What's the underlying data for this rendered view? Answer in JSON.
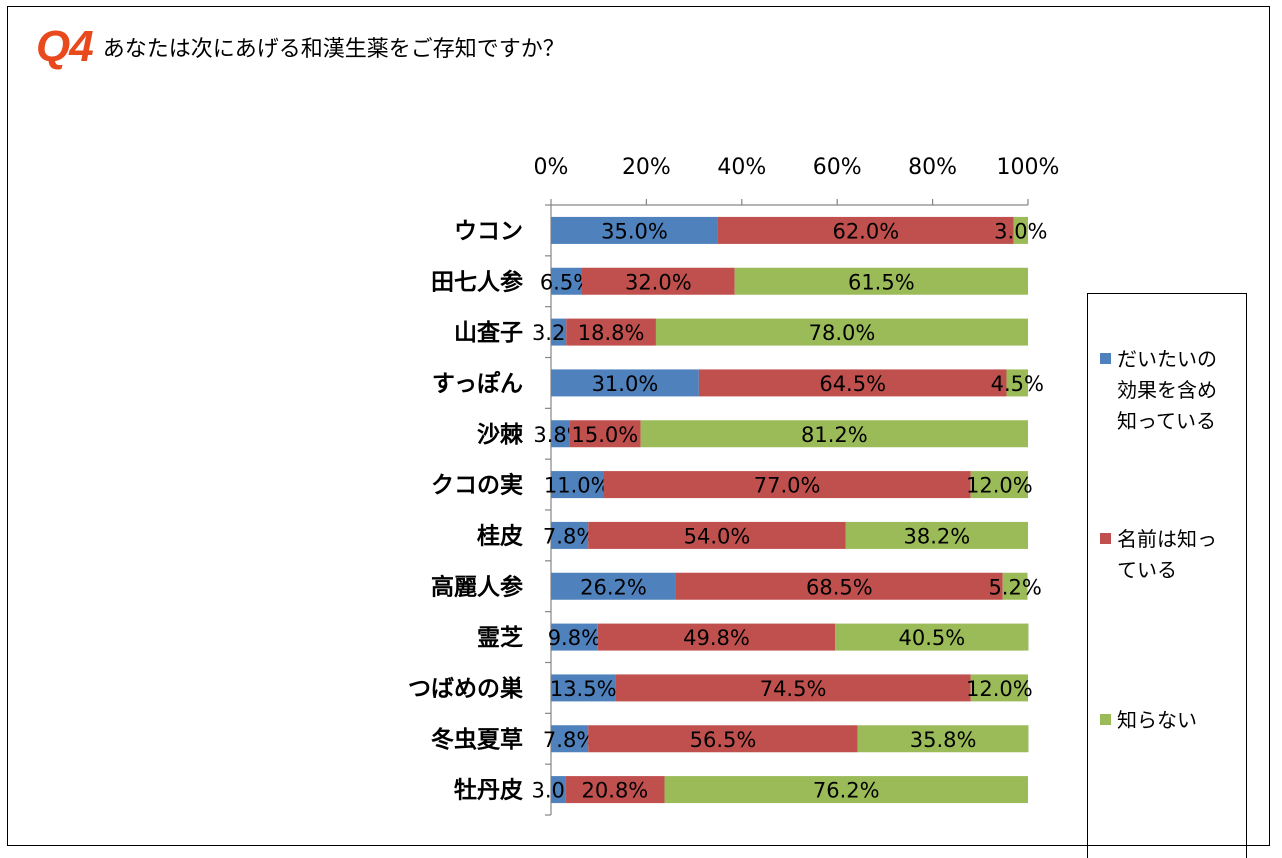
{
  "header": {
    "badge": "Q4",
    "question": "あなたは次にあげる和漢生薬をご存知ですか？"
  },
  "chart_data": {
    "type": "bar",
    "orientation": "horizontal",
    "stacked": "percent",
    "title": "",
    "xlim": [
      0,
      100
    ],
    "x_ticks": [
      "0%",
      "20%",
      "40%",
      "60%",
      "80%",
      "100%"
    ],
    "legend_position": "right",
    "categories": [
      "ウコン",
      "田七人参",
      "山査子",
      "すっぽん",
      "沙棘",
      "クコの実",
      "桂皮",
      "高麗人参",
      "霊芝",
      "つばめの巣",
      "冬虫夏草",
      "牡丹皮"
    ],
    "series": [
      {
        "name": "だいたいの効果を含め知っている",
        "color": "#4f81bd",
        "values": [
          35.0,
          6.5,
          3.2,
          31.0,
          3.8,
          11.0,
          7.8,
          26.2,
          9.8,
          13.5,
          7.8,
          3.0
        ],
        "labels": [
          "35.0%",
          "6.5%",
          "3.2%",
          "31.0%",
          "3.8%",
          "11.0%",
          "7.8%",
          "26.2%",
          "9.8%",
          "13.5%",
          "7.8%",
          "3.0%"
        ]
      },
      {
        "name": "名前は知っている",
        "color": "#c0504d",
        "values": [
          62.0,
          32.0,
          18.8,
          64.5,
          15.0,
          77.0,
          54.0,
          68.5,
          49.8,
          74.5,
          56.5,
          20.8
        ],
        "labels": [
          "62.0%",
          "32.0%",
          "18.8%",
          "64.5%",
          "15.0%",
          "77.0%",
          "54.0%",
          "68.5%",
          "49.8%",
          "74.5%",
          "56.5%",
          "20.8%"
        ]
      },
      {
        "name": "知らない",
        "color": "#9bbb59",
        "values": [
          3.0,
          61.5,
          78.0,
          4.5,
          81.2,
          12.0,
          38.2,
          5.2,
          40.5,
          12.0,
          35.8,
          76.2
        ],
        "labels": [
          "3.0%",
          "61.5%",
          "78.0%",
          "4.5%",
          "81.2%",
          "12.0%",
          "38.2%",
          "5.2%",
          "40.5%",
          "12.0%",
          "35.8%",
          "76.2%"
        ]
      }
    ]
  },
  "legend": {
    "items": [
      {
        "lines": [
          "だいたいの",
          "効果を含め",
          "知っている"
        ],
        "color": "#4f81bd"
      },
      {
        "lines": [
          "名前は知っ",
          "ている"
        ],
        "color": "#c0504d"
      },
      {
        "lines": [
          "知らない"
        ],
        "color": "#9bbb59"
      }
    ]
  }
}
